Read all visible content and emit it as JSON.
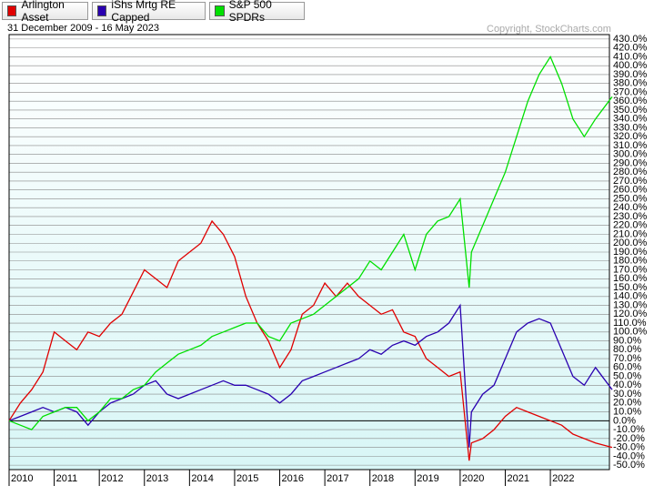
{
  "chart_data": {
    "type": "line",
    "subtitle": "31 December 2009 - 16 May 2023",
    "annotation": "Copyright, StockCharts.com",
    "x": [
      2010,
      2010.25,
      2010.5,
      2010.75,
      2011,
      2011.25,
      2011.5,
      2011.75,
      2012,
      2012.25,
      2012.5,
      2012.75,
      2013,
      2013.25,
      2013.5,
      2013.75,
      2014,
      2014.25,
      2014.5,
      2014.75,
      2015,
      2015.25,
      2015.5,
      2015.75,
      2016,
      2016.25,
      2016.5,
      2016.75,
      2017,
      2017.25,
      2017.5,
      2017.75,
      2018,
      2018.25,
      2018.5,
      2018.75,
      2019,
      2019.25,
      2019.5,
      2019.75,
      2020,
      2020.2,
      2020.25,
      2020.5,
      2020.75,
      2021,
      2021.25,
      2021.5,
      2021.75,
      2022,
      2022.25,
      2022.5,
      2022.75,
      2023,
      2023.37
    ],
    "series": [
      {
        "name": "Arlington Asset",
        "color": "#e00000",
        "values": [
          0,
          20,
          35,
          55,
          100,
          90,
          80,
          100,
          95,
          110,
          120,
          145,
          170,
          160,
          150,
          180,
          190,
          200,
          225,
          210,
          185,
          140,
          110,
          90,
          60,
          80,
          120,
          130,
          155,
          140,
          155,
          140,
          130,
          120,
          125,
          100,
          95,
          70,
          60,
          50,
          55,
          -45,
          -25,
          -20,
          -10,
          5,
          15,
          10,
          5,
          0,
          -5,
          -15,
          -20,
          -25,
          -30
        ]
      },
      {
        "name": "iShs Mrtg RE Capped",
        "color": "#2a00b0",
        "values": [
          0,
          5,
          10,
          15,
          10,
          15,
          10,
          -5,
          10,
          20,
          25,
          30,
          40,
          45,
          30,
          25,
          30,
          35,
          40,
          45,
          40,
          40,
          35,
          30,
          20,
          30,
          45,
          50,
          55,
          60,
          65,
          70,
          80,
          75,
          85,
          90,
          85,
          95,
          100,
          110,
          130,
          -30,
          10,
          30,
          40,
          70,
          100,
          110,
          115,
          110,
          80,
          50,
          40,
          60,
          35
        ]
      },
      {
        "name": "S&P 500 SPDRs",
        "color": "#00e000",
        "values": [
          0,
          -5,
          -10,
          5,
          10,
          15,
          15,
          0,
          10,
          25,
          25,
          35,
          40,
          55,
          65,
          75,
          80,
          85,
          95,
          100,
          105,
          110,
          110,
          95,
          90,
          110,
          115,
          120,
          130,
          140,
          150,
          160,
          180,
          170,
          190,
          210,
          170,
          210,
          225,
          230,
          250,
          150,
          190,
          220,
          250,
          280,
          320,
          360,
          390,
          410,
          380,
          340,
          320,
          340,
          365
        ]
      }
    ],
    "xlim": [
      2010,
      2023.37
    ],
    "xticks": [
      2010,
      2011,
      2012,
      2013,
      2014,
      2015,
      2016,
      2017,
      2018,
      2019,
      2020,
      2021,
      2022
    ],
    "ylim": [
      -55,
      435
    ],
    "yticks": [
      {
        "value": 430,
        "label": "430.0%"
      },
      {
        "value": 420,
        "label": "420.0%"
      },
      {
        "value": 410,
        "label": "410.0%"
      },
      {
        "value": 400,
        "label": "400.0%"
      },
      {
        "value": 390,
        "label": "390.0%"
      },
      {
        "value": 380,
        "label": "380.0%"
      },
      {
        "value": 370,
        "label": "370.0%"
      },
      {
        "value": 360,
        "label": "360.0%"
      },
      {
        "value": 350,
        "label": "350.0%"
      },
      {
        "value": 340,
        "label": "340.0%"
      },
      {
        "value": 330,
        "label": "330.0%"
      },
      {
        "value": 320,
        "label": "320.0%"
      },
      {
        "value": 310,
        "label": "310.0%"
      },
      {
        "value": 300,
        "label": "300.0%"
      },
      {
        "value": 290,
        "label": "290.0%"
      },
      {
        "value": 280,
        "label": "280.0%"
      },
      {
        "value": 270,
        "label": "270.0%"
      },
      {
        "value": 260,
        "label": "260.0%"
      },
      {
        "value": 250,
        "label": "250.0%"
      },
      {
        "value": 240,
        "label": "240.0%"
      },
      {
        "value": 230,
        "label": "230.0%"
      },
      {
        "value": 220,
        "label": "220.0%"
      },
      {
        "value": 210,
        "label": "210.0%"
      },
      {
        "value": 200,
        "label": "200.0%"
      },
      {
        "value": 190,
        "label": "190.0%"
      },
      {
        "value": 180,
        "label": "180.0%"
      },
      {
        "value": 170,
        "label": "170.0%"
      },
      {
        "value": 160,
        "label": "160.0%"
      },
      {
        "value": 150,
        "label": "150.0%"
      },
      {
        "value": 140,
        "label": "140.0%"
      },
      {
        "value": 130,
        "label": "130.0%"
      },
      {
        "value": 120,
        "label": "120.0%"
      },
      {
        "value": 110,
        "label": "110.0%"
      },
      {
        "value": 100,
        "label": "100.0%"
      },
      {
        "value": 90,
        "label": "90.0%"
      },
      {
        "value": 80,
        "label": "80.0%"
      },
      {
        "value": 70,
        "label": "70.0%"
      },
      {
        "value": 60,
        "label": "60.0%"
      },
      {
        "value": 50,
        "label": "50.0%"
      },
      {
        "value": 40,
        "label": "40.0%"
      },
      {
        "value": 30,
        "label": "30.0%"
      },
      {
        "value": 20,
        "label": "20.0%"
      },
      {
        "value": 10,
        "label": "10.0%"
      },
      {
        "value": 0,
        "label": "0.0%"
      },
      {
        "value": -10,
        "label": "-10.0%"
      },
      {
        "value": -20,
        "label": "-20.0%"
      },
      {
        "value": -30,
        "label": "-30.0%"
      },
      {
        "value": -40,
        "label": "-40.0%"
      },
      {
        "value": -50,
        "label": "-50.0%"
      }
    ],
    "grid": true
  }
}
